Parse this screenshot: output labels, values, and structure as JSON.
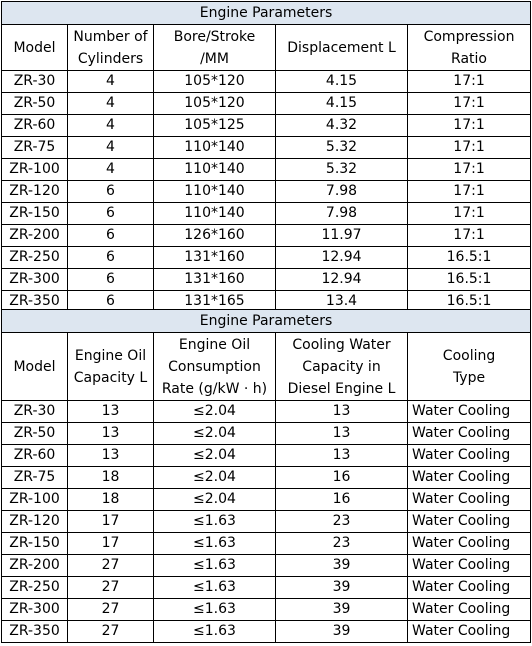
{
  "table1": {
    "title": "Engine Parameters",
    "headers": [
      "Model",
      "Number of\nCylinders",
      "Bore/Stroke\n/MM",
      "Displacement L",
      "Compression\nRatio"
    ],
    "rows": [
      [
        "ZR-30",
        "4",
        "105*120",
        "4.15",
        "17:1"
      ],
      [
        "ZR-50",
        "4",
        "105*120",
        "4.15",
        "17:1"
      ],
      [
        "ZR-60",
        "4",
        "105*125",
        "4.32",
        "17:1"
      ],
      [
        "ZR-75",
        "4",
        "110*140",
        "5.32",
        "17:1"
      ],
      [
        "ZR-100",
        "4",
        "110*140",
        "5.32",
        "17:1"
      ],
      [
        "ZR-120",
        "6",
        "110*140",
        "7.98",
        "17:1"
      ],
      [
        "ZR-150",
        "6",
        "110*140",
        "7.98",
        "17:1"
      ],
      [
        "ZR-200",
        "6",
        "126*160",
        "11.97",
        "17:1"
      ],
      [
        "ZR-250",
        "6",
        "131*160",
        "12.94",
        "16.5:1"
      ],
      [
        "ZR-300",
        "6",
        "131*160",
        "12.94",
        "16.5:1"
      ],
      [
        "ZR-350",
        "6",
        "131*165",
        "13.4",
        "16.5:1"
      ]
    ]
  },
  "table2": {
    "title": "Engine Parameters",
    "headers": [
      "Model",
      "Engine Oil\nCapacity L",
      "Engine Oil\nConsumption\nRate (g/kW · h)",
      "Cooling Water\nCapacity in\nDiesel Engine L",
      "Cooling\nType"
    ],
    "rows": [
      [
        "ZR-30",
        "13",
        "≤2.04",
        "13",
        "Water Cooling"
      ],
      [
        "ZR-50",
        "13",
        "≤2.04",
        "13",
        "Water Cooling"
      ],
      [
        "ZR-60",
        "13",
        "≤2.04",
        "13",
        "Water Cooling"
      ],
      [
        "ZR-75",
        "18",
        "≤2.04",
        "16",
        "Water Cooling"
      ],
      [
        "ZR-100",
        "18",
        "≤2.04",
        "16",
        "Water Cooling"
      ],
      [
        "ZR-120",
        "17",
        "≤1.63",
        "23",
        "Water Cooling"
      ],
      [
        "ZR-150",
        "17",
        "≤1.63",
        "23",
        "Water Cooling"
      ],
      [
        "ZR-200",
        "27",
        "≤1.63",
        "39",
        "Water Cooling"
      ],
      [
        "ZR-250",
        "27",
        "≤1.63",
        "39",
        "Water Cooling"
      ],
      [
        "ZR-300",
        "27",
        "≤1.63",
        "39",
        "Water Cooling"
      ],
      [
        "ZR-350",
        "27",
        "≤1.63",
        "39",
        "Water Cooling"
      ]
    ]
  },
  "colors": {
    "title_background": "#dde6f0",
    "border": "#000000"
  }
}
